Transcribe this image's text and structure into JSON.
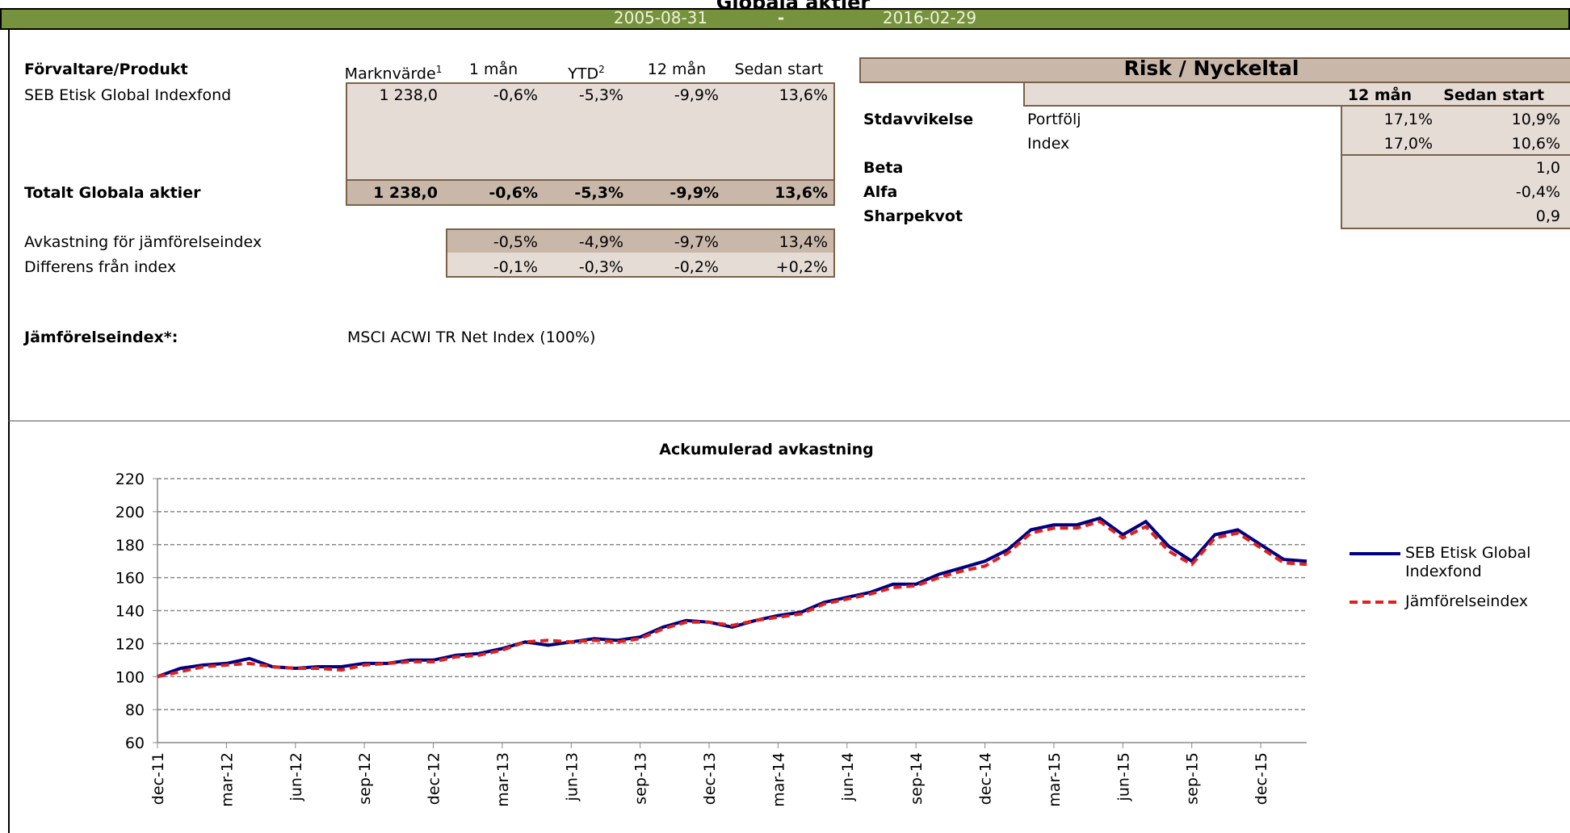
{
  "header": {
    "title": "Globala aktier",
    "date_from": "2005-08-31",
    "separator": "-",
    "date_to": "2016-02-29"
  },
  "performance_table": {
    "columns": [
      {
        "label": "Förvaltare/Produkt"
      },
      {
        "label": "Marknvärde",
        "note": "1"
      },
      {
        "label": "1 mån"
      },
      {
        "label": "YTD",
        "note": "2"
      },
      {
        "label": "12 mån"
      },
      {
        "label": "Sedan start"
      }
    ],
    "rows": [
      [
        "SEB Etisk Global Indexfond",
        "1 238,0",
        "-0,6%",
        "-5,3%",
        "-9,9%",
        "13,6%"
      ]
    ],
    "total": [
      "Totalt Globala aktier",
      "1 238,0",
      "-0,6%",
      "-5,3%",
      "-9,9%",
      "13,6%"
    ],
    "comparison": [
      [
        "Avkastning för jämförelseindex",
        "-0,5%",
        "-4,9%",
        "-9,7%",
        "13,4%"
      ],
      [
        "Differens från index",
        "-0,1%",
        "-0,3%",
        "-0,2%",
        "+0,2%"
      ]
    ]
  },
  "benchmark": {
    "label": "Jämförelseindex*:",
    "value": "MSCI ACWI TR Net Index (100%)"
  },
  "risk_table": {
    "title": "Risk / Nyckeltal",
    "columns": [
      "12 mån",
      "Sedan start"
    ],
    "rows": [
      {
        "group": "Stdavvikelse",
        "label": "Portfölj",
        "m12": "17,1%",
        "since_start": "10,9%"
      },
      {
        "label": "Index",
        "m12": "17,0%",
        "since_start": "10,6%"
      },
      {
        "group": "Beta",
        "since_start": "1,0"
      },
      {
        "group": "Alfa",
        "since_start": "-0,4%"
      },
      {
        "group": "Sharpekvot",
        "since_start": "0,9"
      }
    ]
  },
  "chart_data": {
    "type": "line",
    "title": "Ackumulerad avkastning",
    "categories": [
      "dec-11",
      null,
      null,
      "mar-12",
      null,
      null,
      "jun-12",
      null,
      null,
      "sep-12",
      null,
      null,
      "dec-12",
      null,
      null,
      "mar-13",
      null,
      null,
      "jun-13",
      null,
      null,
      "sep-13",
      null,
      null,
      "dec-13",
      null,
      null,
      "mar-14",
      null,
      null,
      "jun-14",
      null,
      null,
      "sep-14",
      null,
      null,
      "dec-14",
      null,
      null,
      "mar-15",
      null,
      null,
      "jun-15",
      null,
      null,
      "sep-15",
      null,
      null,
      "dec-15",
      null,
      null
    ],
    "series": [
      {
        "name": "SEB Etisk Global Indexfond",
        "color": "#000080",
        "values": [
          100,
          105,
          107,
          108,
          111,
          106,
          105,
          106,
          106,
          108,
          108,
          110,
          110,
          113,
          114,
          117,
          121,
          119,
          121,
          123,
          122,
          124,
          130,
          134,
          133,
          130,
          134,
          137,
          139,
          145,
          148,
          151,
          156,
          156,
          162,
          166,
          170,
          177,
          189,
          192,
          192,
          196,
          186,
          194,
          179,
          170,
          186,
          189,
          180,
          171,
          170
        ]
      },
      {
        "name": "Jämförelseindex",
        "color": "#e0201b",
        "dashed": true,
        "values": [
          100,
          103,
          106,
          107,
          108,
          106,
          105,
          105,
          104,
          107,
          108,
          109,
          109,
          112,
          113,
          116,
          121,
          122,
          121,
          122,
          121,
          123,
          129,
          133,
          133,
          131,
          134,
          136,
          138,
          144,
          147,
          150,
          154,
          155,
          160,
          164,
          167,
          175,
          187,
          190,
          190,
          194,
          184,
          191,
          176,
          168,
          184,
          187,
          178,
          169,
          168
        ]
      }
    ],
    "ylim": [
      60,
      220
    ],
    "yticks": [
      60,
      80,
      100,
      120,
      140,
      160,
      180,
      200,
      220
    ],
    "grid": true,
    "legend": "right"
  }
}
